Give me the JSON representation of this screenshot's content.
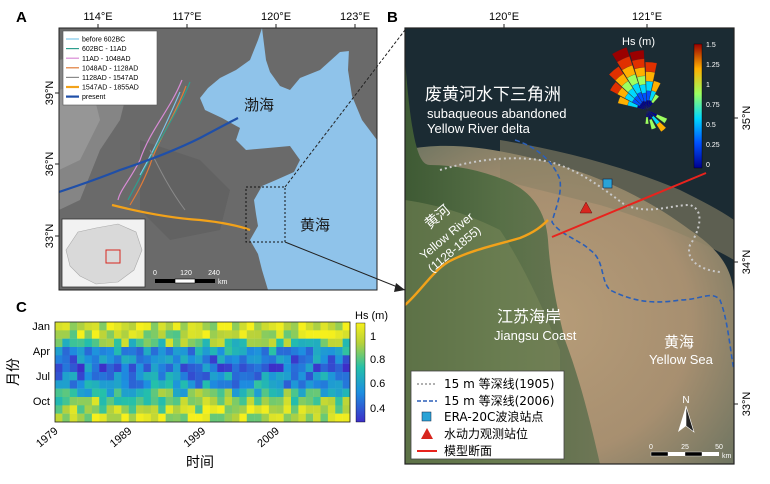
{
  "panel_a": {
    "label": "A",
    "lon_ticks": [
      "114°E",
      "117°E",
      "120°E",
      "123°E"
    ],
    "lat_ticks": [
      "39°N",
      "36°N",
      "33°N"
    ],
    "sea_bohai": "渤海",
    "sea_yellow": "黄海",
    "legend": [
      {
        "label": "before 602BC",
        "color": "#7fc7e8"
      },
      {
        "label": "602BC - 11AD",
        "color": "#2e9e8e"
      },
      {
        "label": "11AD - 1048AD",
        "color": "#d98bd6"
      },
      {
        "label": "1048AD - 1128AD",
        "color": "#e07b39"
      },
      {
        "label": "1128AD - 1547AD",
        "color": "#8a8a8a"
      },
      {
        "label": "1547AD - 1855AD",
        "color": "#f2a21a"
      },
      {
        "label": "present",
        "color": "#1f4fa8"
      }
    ],
    "scale": {
      "ticks": [
        "0",
        "120",
        "240"
      ],
      "unit": "km"
    }
  },
  "panel_b": {
    "label": "B",
    "lon_ticks": [
      "120°E",
      "121°E"
    ],
    "lat_ticks": [
      "35°N",
      "34°N",
      "33°N"
    ],
    "title_zh": "废黄河水下三角洲",
    "title_en_1": "subaqueous abandoned",
    "title_en_2": "Yellow River delta",
    "river_zh": "黄河",
    "river_en_1": "Yellow River",
    "river_en_2": "(1128-1855)",
    "coast_zh": "江苏海岸",
    "coast_en": "Jiangsu Coast",
    "sea_zh": "黄海",
    "sea_en": "Yellow Sea",
    "rose_title": "Hs (m)",
    "rose_ticks": [
      "1.5",
      "1.25",
      "1",
      "0.75",
      "0.5",
      "0.25",
      "0"
    ],
    "north": "N",
    "scale": {
      "ticks": [
        "0",
        "25",
        "50"
      ],
      "unit": "km"
    },
    "legend": [
      {
        "label": "15 m 等深线(1905)",
        "color": "#c8c8c8"
      },
      {
        "label": "15 m 等深线(2006)",
        "color": "#2b5fb8"
      },
      {
        "label": "ERA-20C波浪站点",
        "color": "#2aa3d6"
      },
      {
        "label": "水动力观测站位",
        "color": "#d7261e"
      },
      {
        "label": "模型断面",
        "color": "#e8231d"
      }
    ]
  },
  "panel_c": {
    "label": "C",
    "ylabel": "月份",
    "xlabel": "时间",
    "y_ticks": [
      "Jan",
      "Apr",
      "Jul",
      "Oct"
    ],
    "x_ticks": [
      "1979",
      "1989",
      "1999",
      "2009"
    ],
    "colorbar_title": "Hs (m)",
    "colorbar_ticks": [
      "1",
      "0.8",
      "0.6",
      "0.4"
    ]
  },
  "chart_data": {
    "type": "heatmap",
    "title": "",
    "xlabel": "时间",
    "ylabel": "月份",
    "x_range": [
      1979,
      2018
    ],
    "rows": 12,
    "colorbar_range": [
      0.35,
      1.05
    ],
    "monthly_mean_hs": [
      0.98,
      0.93,
      0.82,
      0.62,
      0.52,
      0.5,
      0.55,
      0.6,
      0.75,
      0.85,
      0.92,
      0.97
    ]
  }
}
